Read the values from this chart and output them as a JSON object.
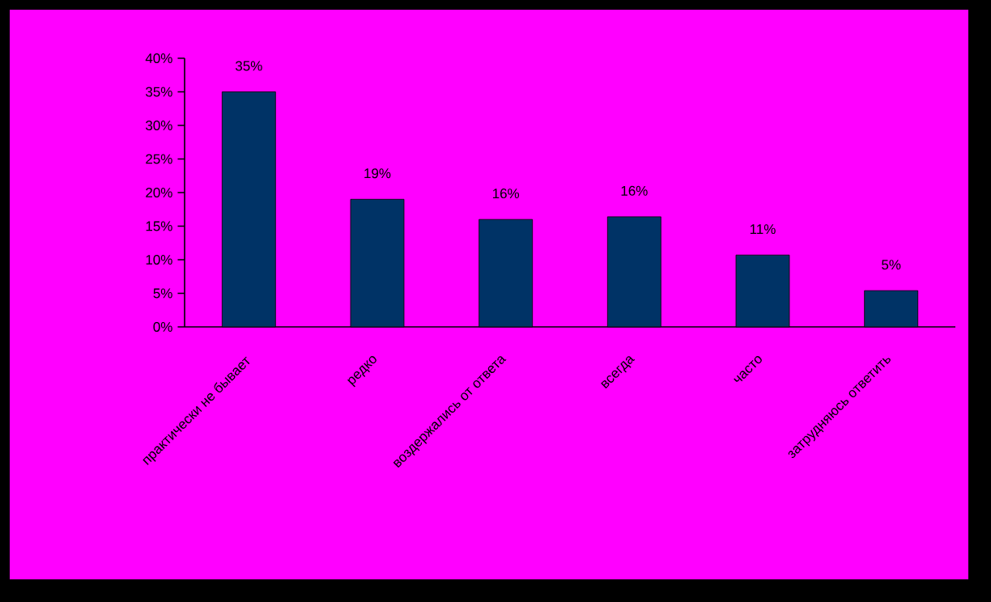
{
  "chart_data": {
    "type": "bar",
    "categories": [
      "практически не бывает",
      "редко",
      "воздержались от ответа",
      "всегда",
      "часто",
      "затрудняюсь ответить"
    ],
    "values": [
      35,
      19,
      16,
      16.4,
      10.7,
      5.4
    ],
    "value_labels": [
      "35%",
      "19%",
      "16%",
      "16%",
      "11%",
      "5%"
    ],
    "color": "#003366",
    "ylim": [
      0,
      40
    ],
    "yticks": [
      {
        "value": 0,
        "label": "0%"
      },
      {
        "value": 5,
        "label": "5%"
      },
      {
        "value": 10,
        "label": "10%"
      },
      {
        "value": 15,
        "label": "15%"
      },
      {
        "value": 20,
        "label": "20%"
      },
      {
        "value": 25,
        "label": "25%"
      },
      {
        "value": 30,
        "label": "30%"
      },
      {
        "value": 35,
        "label": "35%"
      },
      {
        "value": 40,
        "label": "40%"
      }
    ]
  }
}
